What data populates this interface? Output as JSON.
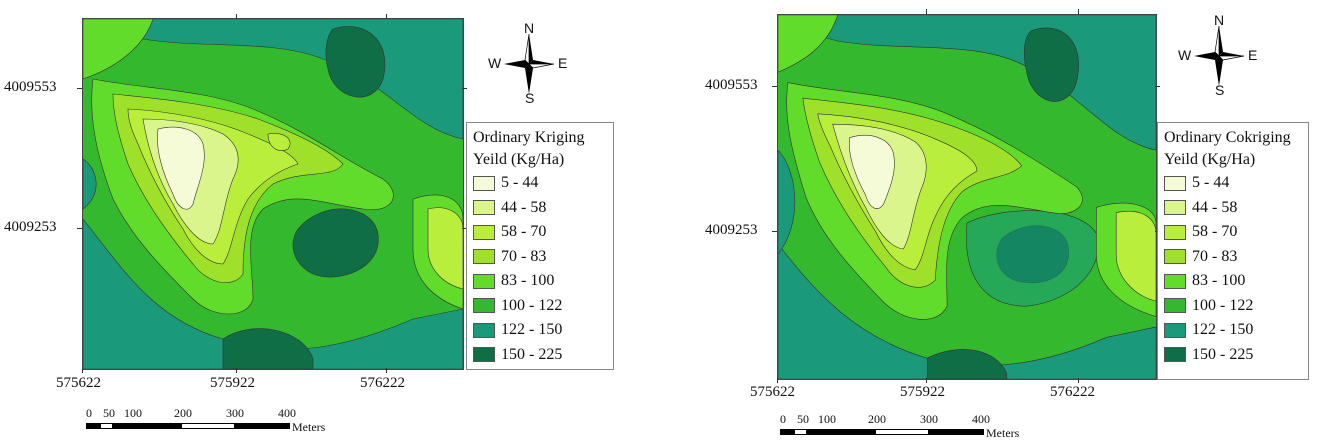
{
  "panels": [
    {
      "legend_title_1": "Ordinary Kriging",
      "legend_title_2": "Yeild (Kg/Ha)",
      "y_ticks": [
        "4009553",
        "4009253"
      ],
      "x_ticks": [
        "575622",
        "575922",
        "576222"
      ],
      "compass": {
        "n": "N",
        "s": "S",
        "e": "E",
        "w": "W"
      },
      "scale": {
        "labels": [
          "0",
          "50",
          "100",
          "200",
          "300",
          "400"
        ],
        "unit": "Meters"
      }
    },
    {
      "legend_title_1": "Ordinary Cokriging",
      "legend_title_2": "Yeild (Kg/Ha)",
      "y_ticks": [
        "4009553",
        "4009253"
      ],
      "x_ticks": [
        "575622",
        "575922",
        "576222"
      ],
      "compass": {
        "n": "N",
        "s": "S",
        "e": "E",
        "w": "W"
      },
      "scale": {
        "labels": [
          "0",
          "50",
          "100",
          "200",
          "300",
          "400"
        ],
        "unit": "Meters"
      }
    }
  ],
  "legend_classes": [
    {
      "label": "5 - 44",
      "color": "#f4fbd6"
    },
    {
      "label": "44 - 58",
      "color": "#d9f58b"
    },
    {
      "label": "58 - 70",
      "color": "#b9ee3c"
    },
    {
      "label": "70 - 83",
      "color": "#9ee02a"
    },
    {
      "label": "83 - 100",
      "color": "#62dc2a"
    },
    {
      "label": "100 - 122",
      "color": "#34b82d"
    },
    {
      "label": "122 - 150",
      "color": "#1a9a7a"
    },
    {
      "label": "150 - 225",
      "color": "#0f6e45"
    }
  ]
}
